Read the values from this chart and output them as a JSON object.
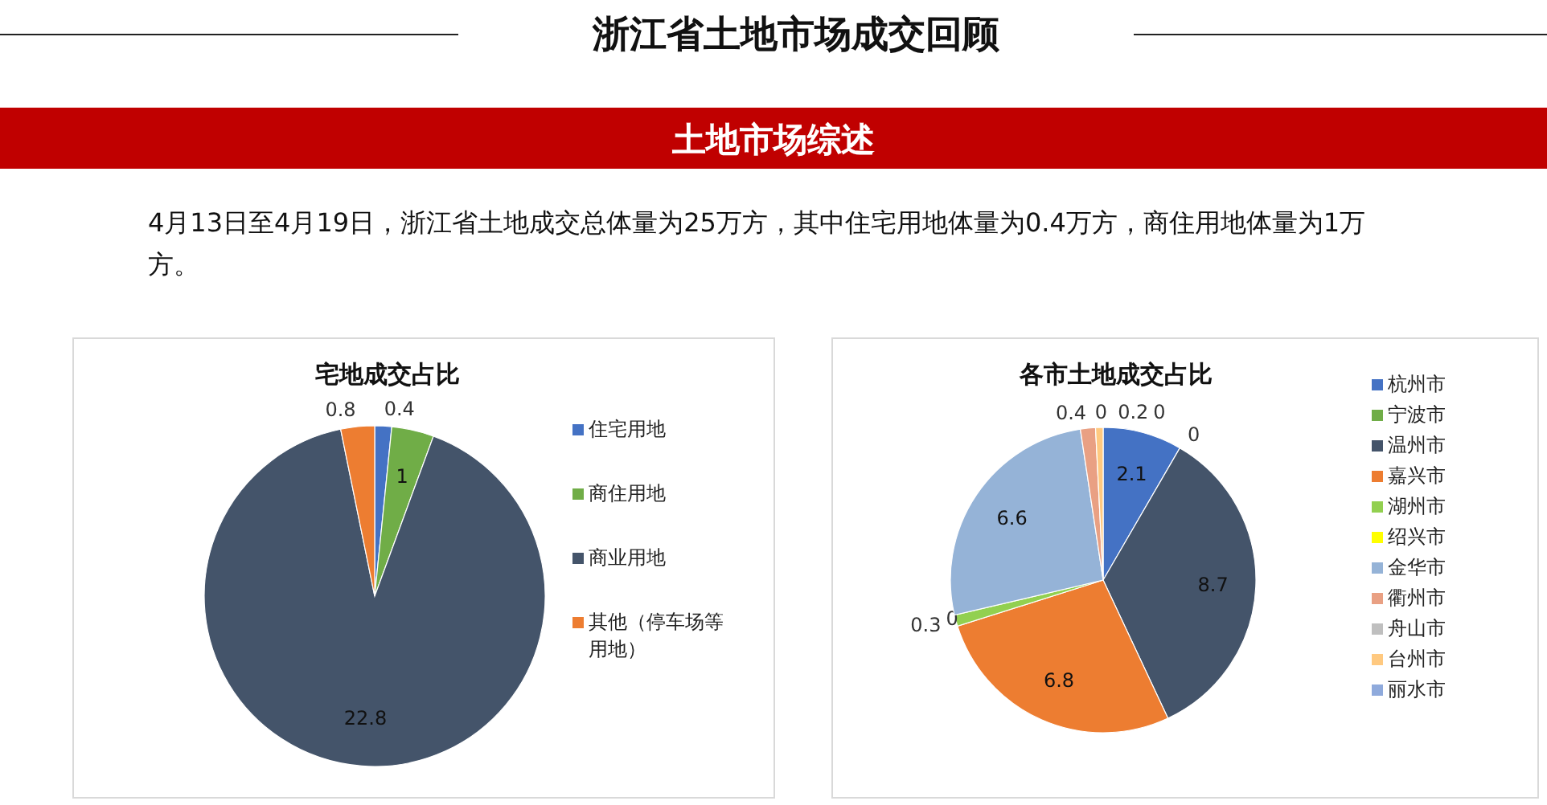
{
  "chart_data": [
    {
      "type": "other",
      "title": "浙江省土地市场成交回顾",
      "subtitle": "土地市场综述",
      "annotations": [
        "4月13日至4月19日，浙江省土地成交总体量为25万方，其中住宅用地体量为0.4万方，商住用地体量为1万方。"
      ]
    },
    {
      "type": "pie",
      "title": "宅地成交占比",
      "categories": [
        "住宅用地",
        "商住用地",
        "商业用地",
        "其他（停车场等用地）"
      ],
      "values": [
        0.4,
        1,
        22.8,
        0.8
      ],
      "colors": [
        "#4472c4",
        "#70ad47",
        "#44546a",
        "#ed7d31"
      ],
      "data_labels": true,
      "legend": "right"
    },
    {
      "type": "pie",
      "title": "各市土地成交占比",
      "categories": [
        "杭州市",
        "宁波市",
        "温州市",
        "嘉兴市",
        "湖州市",
        "绍兴市",
        "金华市",
        "衢州市",
        "舟山市",
        "台州市",
        "丽水市"
      ],
      "values": [
        2.1,
        0,
        8.7,
        6.8,
        0.3,
        0,
        6.6,
        0.4,
        0,
        0.2,
        0
      ],
      "colors": [
        "#4472c4",
        "#70ad47",
        "#44546a",
        "#ed7d31",
        "#92d050",
        "#ffff00",
        "#95b3d7",
        "#e9a083",
        "#bfbfbf",
        "#ffc980",
        "#8faadc"
      ],
      "data_labels": true,
      "value_labels": [
        "2.1",
        "0",
        "8.7",
        "6.8",
        "0.3",
        "0",
        "6.6",
        "0.4",
        "0",
        "0.2",
        "0"
      ],
      "legend": "right"
    }
  ]
}
